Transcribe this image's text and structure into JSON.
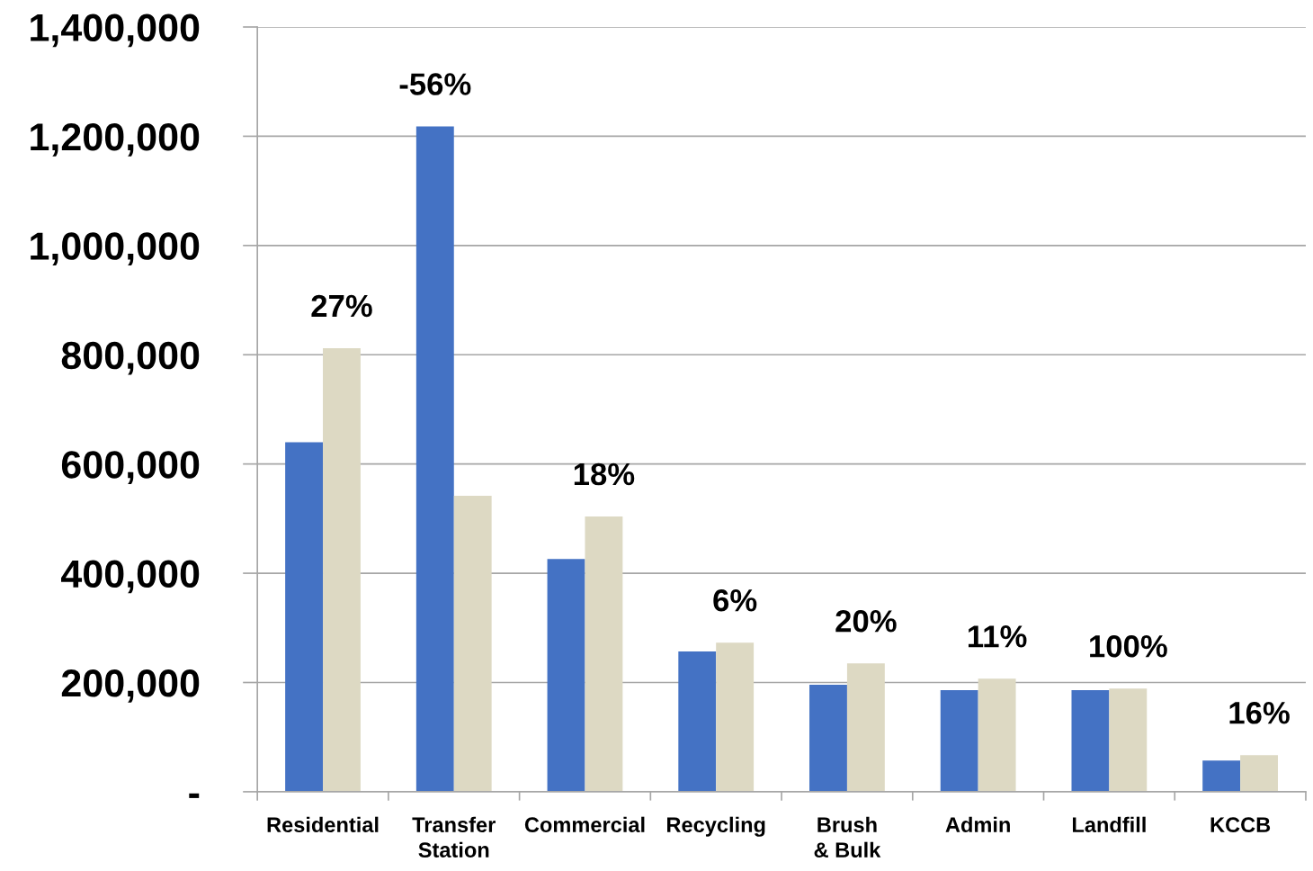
{
  "chart_data": {
    "type": "bar",
    "categories": [
      "Residential",
      "Transfer\nStation",
      "Commercial",
      "Recycling",
      "Brush\n& Bulk",
      "Admin",
      "Landfill",
      "KCCB"
    ],
    "series": [
      {
        "color": "#4472c4",
        "values": [
          640000,
          1218000,
          426000,
          257000,
          196000,
          186000,
          186000,
          57000
        ]
      },
      {
        "color": "#ddd9c3",
        "values": [
          812000,
          542000,
          504000,
          273000,
          235000,
          207000,
          189000,
          67000
        ]
      }
    ],
    "annotations": [
      {
        "text": "27%",
        "x": "Residential",
        "y": 812000
      },
      {
        "text": "-56%",
        "x": "Transfer\nStation",
        "y": 1218000
      },
      {
        "text": "18%",
        "x": "Commercial",
        "y": 504000
      },
      {
        "text": "6%",
        "x": "Recycling",
        "y": 273000
      },
      {
        "text": "20%",
        "x": "Brush\n& Bulk",
        "y": 235000
      },
      {
        "text": "11%",
        "x": "Admin",
        "y": 207000
      },
      {
        "text": "100%",
        "x": "Landfill",
        "y": 189000
      },
      {
        "text": "16%",
        "x": "KCCB",
        "y": 67000
      }
    ],
    "ylim": [
      0,
      1400000
    ],
    "yticks": [
      {
        "value": 0,
        "label": "-"
      },
      {
        "value": 200000,
        "label": "200,000"
      },
      {
        "value": 400000,
        "label": "400,000"
      },
      {
        "value": 600000,
        "label": "600,000"
      },
      {
        "value": 800000,
        "label": "800,000"
      },
      {
        "value": 1000000,
        "label": "1,000,000"
      },
      {
        "value": 1200000,
        "label": "1,200,000"
      },
      {
        "value": 1400000,
        "label": "1,400,000"
      }
    ],
    "grid": "y",
    "legend": false
  }
}
